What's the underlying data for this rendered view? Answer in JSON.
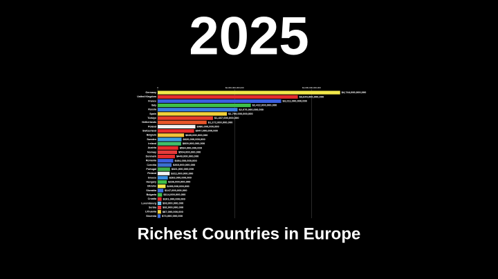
{
  "chart_data": {
    "type": "hbar",
    "annotation": "2025",
    "title": "Richest Countries in Europe",
    "categories": [
      "Germany",
      "United Kingdom",
      "France",
      "Italy",
      "Russia",
      "Spain",
      "Türkiye",
      "Netherlands",
      "Poland",
      "Switzerland",
      "Belgium",
      "Sweden",
      "Ireland",
      "Austria",
      "Norway",
      "Denmark",
      "Romania",
      "Czechia",
      "Portugal",
      "Finland",
      "Greece",
      "Hungary",
      "Ukraine",
      "Slovakia",
      "Bulgaria",
      "Croatia",
      "Luxembourg",
      "Serbia",
      "Lithuania",
      "Slovenia"
    ],
    "values": [
      4744000000000,
      3644000000000,
      3211000000000,
      2422000000000,
      2076000000000,
      1799000000000,
      1437000000000,
      1272000000000,
      980000000000,
      947000000000,
      685000000000,
      620000000000,
      609000000000,
      534000000000,
      504000000000,
      449000000000,
      404000000000,
      360000000000,
      321000000000,
      311000000000,
      263000000000,
      236000000000,
      205000000000,
      147000000000,
      114000000000,
      101000000000,
      93000000000,
      92000000000,
      87000000000,
      73000000000
    ],
    "value_labels": [
      "$4,744,000,000,000",
      "$3,644,000,000,000",
      "$3,211,000,000,000",
      "$2,422,000,000,000",
      "$2,076,000,000,000",
      "$1,799,000,000,000",
      "$1,437,000,000,000",
      "$1,272,000,000,000",
      "$980,000,000,000",
      "$947,000,000,000",
      "$685,000,000,000",
      "$620,000,000,000",
      "$609,000,000,000",
      "$534,000,000,000",
      "$504,000,000,000",
      "$449,000,000,000",
      "$404,000,000,000",
      "$360,000,000,000",
      "$321,000,000,000",
      "$311,000,000,000",
      "$263,000,000,000",
      "$236,000,000,000",
      "$205,000,000,000",
      "$147,000,000,000",
      "$114,000,000,000",
      "$101,000,000,000",
      "$93,000,000,000",
      "$92,000,000,000",
      "$87,000,000,000",
      "$73,000,000,000"
    ],
    "colors": [
      "#f2e84a",
      "#e52c2c",
      "#3b5fe0",
      "#3fbf4a",
      "#3b7de0",
      "#f2d23a",
      "#e53b2c",
      "#e8552a",
      "#f2f2f2",
      "#e52c2c",
      "#f2c23a",
      "#3f9fe0",
      "#3fbf6a",
      "#e52c2c",
      "#e53b3b",
      "#e52c2c",
      "#3b5fe0",
      "#3b6fd0",
      "#3fae4a",
      "#f2f2f2",
      "#3b8fe0",
      "#3fbf4a",
      "#f2e84a",
      "#3b6fe0",
      "#3fbf4a",
      "#e52c2c",
      "#6fc0f0",
      "#e53b3b",
      "#f2d23a",
      "#3b6fe0"
    ],
    "xlim": [
      0,
      5000000000000
    ],
    "xticks": [
      0,
      {
        "value": 2000000000000,
        "label": "$2,000,000,000,000"
      },
      {
        "value": 4000000000000,
        "label": "$4,000,000,000,000"
      }
    ],
    "grid": true
  }
}
